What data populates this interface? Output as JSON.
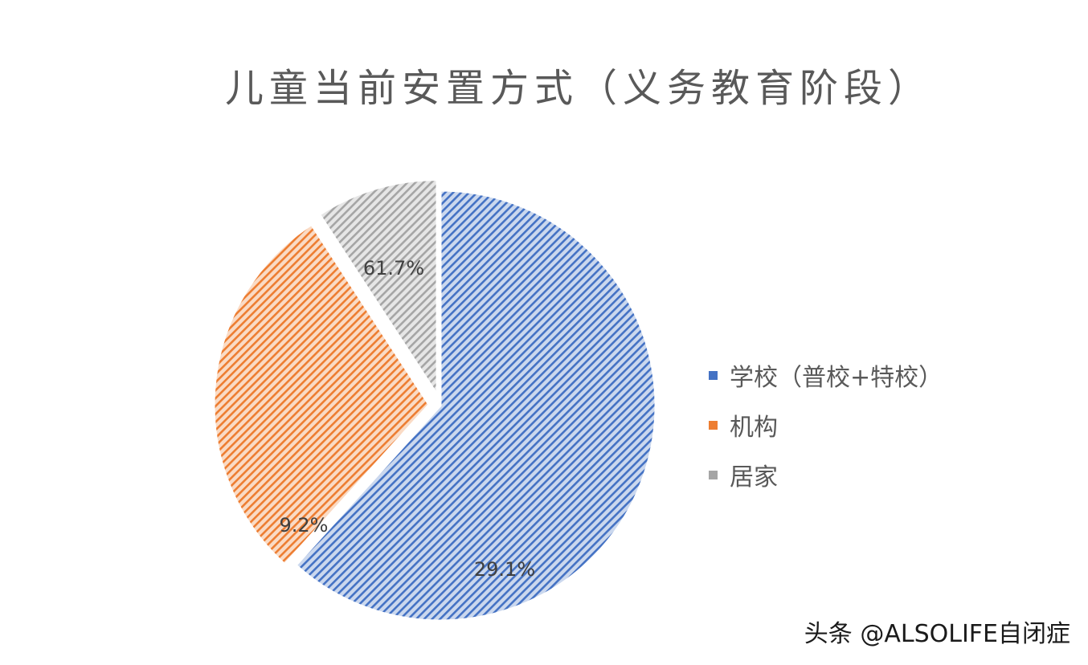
{
  "chart_data": {
    "type": "pie",
    "title": "儿童当前安置方式（义务教育阶段）",
    "categories": [
      "学校（普校+特校）",
      "机构",
      "居家"
    ],
    "values": [
      61.7,
      29.1,
      9.2
    ],
    "data_labels": [
      "61.7%",
      "29.1%",
      "9.2%"
    ],
    "colors": [
      "#4472C4",
      "#ED7D31",
      "#A5A5A5"
    ],
    "fill_pattern": "diagonal-hatch",
    "legend_position": "right"
  },
  "watermark": "头条 @ALSOLIFE自闭症"
}
